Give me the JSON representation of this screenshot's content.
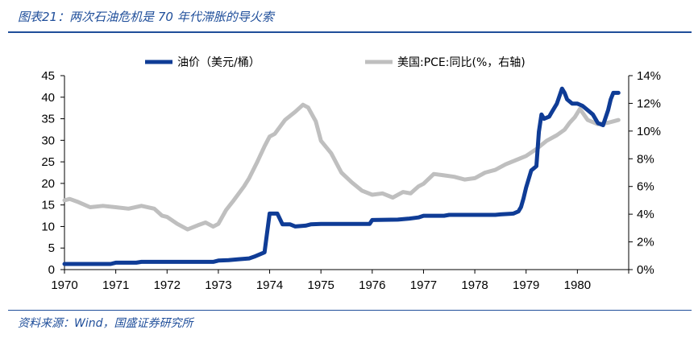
{
  "figure": {
    "title": "图表21：两次石油危机是 70 年代滞胀的导火索",
    "source": "资料来源：Wind，国盛证券研究所"
  },
  "colors": {
    "oil": "#0f3c96",
    "pce": "#bfbfbf",
    "accent": "#1f4e9a"
  },
  "chart_data": {
    "type": "line",
    "title": "",
    "xlabel": "",
    "x_tick_labels": [
      "1970",
      "1971",
      "1972",
      "1973",
      "1974",
      "1975",
      "1976",
      "1977",
      "1978",
      "1979",
      "1980"
    ],
    "x_ticks": [
      1970,
      1971,
      1972,
      1973,
      1974,
      1975,
      1976,
      1977,
      1978,
      1979,
      1980
    ],
    "xlim": [
      1970,
      1981
    ],
    "y_left": {
      "label": "油价（美元/桶）",
      "ylim": [
        0,
        45
      ],
      "ticks": [
        0,
        5,
        10,
        15,
        20,
        25,
        30,
        35,
        40,
        45
      ],
      "tick_labels": [
        "0",
        "5",
        "10",
        "15",
        "20",
        "25",
        "30",
        "35",
        "40",
        "45"
      ]
    },
    "y_right": {
      "label": "美国:PCE:同比(%，右轴)",
      "ylim": [
        0,
        14
      ],
      "ticks": [
        0,
        2,
        4,
        6,
        8,
        10,
        12,
        14
      ],
      "tick_labels": [
        "0%",
        "2%",
        "4%",
        "6%",
        "8%",
        "10%",
        "12%",
        "14%"
      ]
    },
    "legend": [
      "油价（美元/桶）",
      "美国:PCE:同比(%，右轴)"
    ],
    "series": [
      {
        "name": "油价（美元/桶）",
        "axis": "left",
        "x": [
          1970,
          1970.9,
          1971.0,
          1971.4,
          1971.5,
          1972.9,
          1973.0,
          1973.2,
          1973.4,
          1973.6,
          1973.7,
          1973.9,
          1974.0,
          1974.15,
          1974.25,
          1974.4,
          1974.5,
          1974.7,
          1974.8,
          1975.0,
          1975.2,
          1975.95,
          1976.0,
          1976.5,
          1976.7,
          1976.9,
          1977.0,
          1977.4,
          1977.5,
          1978.4,
          1978.5,
          1978.75,
          1978.85,
          1978.9,
          1978.95,
          1979.0,
          1979.1,
          1979.2,
          1979.25,
          1979.3,
          1979.35,
          1979.45,
          1979.5,
          1979.6,
          1979.7,
          1979.75,
          1979.8,
          1979.9,
          1980.0,
          1980.1,
          1980.2,
          1980.3,
          1980.4,
          1980.5,
          1980.6,
          1980.65,
          1980.7,
          1980.8
        ],
        "values": [
          1.3,
          1.3,
          1.6,
          1.6,
          1.8,
          1.8,
          2.1,
          2.2,
          2.4,
          2.6,
          3.0,
          4.0,
          13.0,
          13.0,
          10.5,
          10.5,
          10.0,
          10.2,
          10.5,
          10.6,
          10.6,
          10.6,
          11.5,
          11.6,
          11.8,
          12.1,
          12.5,
          12.5,
          12.7,
          12.7,
          12.8,
          13.0,
          13.5,
          14.5,
          16.5,
          19.0,
          23.0,
          24.0,
          32.0,
          36.0,
          35.0,
          35.5,
          36.5,
          38.5,
          42.0,
          41.0,
          39.5,
          38.5,
          38.5,
          38.0,
          37.0,
          36.0,
          34.0,
          33.5,
          37.0,
          39.5,
          41.0,
          41.0
        ]
      },
      {
        "name": "美国:PCE:同比(%，右轴)",
        "axis": "right",
        "x": [
          1970,
          1970.1,
          1970.25,
          1970.5,
          1970.75,
          1971.0,
          1971.25,
          1971.5,
          1971.75,
          1971.9,
          1972.0,
          1972.2,
          1972.4,
          1972.6,
          1972.75,
          1972.9,
          1973.0,
          1973.15,
          1973.3,
          1973.5,
          1973.6,
          1973.75,
          1973.9,
          1974.0,
          1974.1,
          1974.3,
          1974.5,
          1974.65,
          1974.75,
          1974.9,
          1975.0,
          1975.2,
          1975.4,
          1975.6,
          1975.8,
          1976.0,
          1976.2,
          1976.4,
          1976.6,
          1976.75,
          1976.9,
          1977.0,
          1977.2,
          1977.4,
          1977.6,
          1977.8,
          1978.0,
          1978.2,
          1978.4,
          1978.6,
          1978.8,
          1979.0,
          1979.2,
          1979.4,
          1979.6,
          1979.75,
          1979.85,
          1979.95,
          1980.05,
          1980.2,
          1980.4,
          1980.6,
          1980.8
        ],
        "values": [
          5.0,
          5.1,
          4.9,
          4.5,
          4.6,
          4.5,
          4.4,
          4.6,
          4.4,
          3.9,
          3.8,
          3.3,
          2.9,
          3.2,
          3.4,
          3.1,
          3.3,
          4.3,
          5.0,
          6.0,
          6.6,
          7.7,
          8.9,
          9.6,
          9.8,
          10.8,
          11.4,
          11.9,
          11.7,
          10.7,
          9.3,
          8.4,
          7.0,
          6.3,
          5.7,
          5.4,
          5.5,
          5.2,
          5.6,
          5.5,
          6.0,
          6.2,
          6.9,
          6.8,
          6.7,
          6.5,
          6.6,
          7.0,
          7.2,
          7.6,
          7.9,
          8.2,
          8.7,
          9.3,
          9.7,
          10.1,
          10.6,
          11.0,
          11.6,
          10.8,
          10.5,
          10.6,
          10.8
        ]
      }
    ]
  }
}
